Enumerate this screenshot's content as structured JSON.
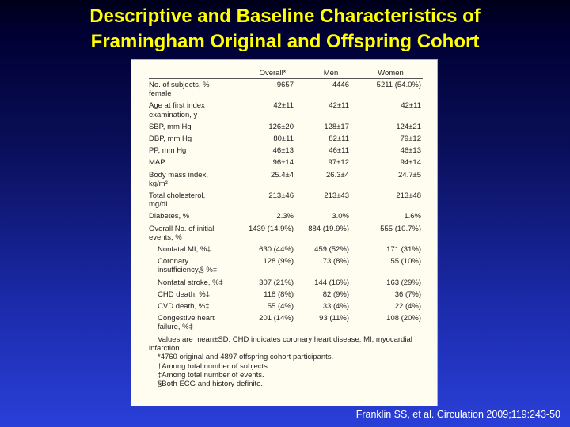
{
  "slide": {
    "title_line1": "Descriptive and Baseline Characteristics of",
    "title_line2": "Framingham Original and Offspring Cohort",
    "citation": "Franklin SS, et al. Circulation 2009;119:243-50"
  },
  "table": {
    "headers": [
      "",
      "Overall*",
      "Men",
      "Women"
    ],
    "rows": [
      {
        "label": [
          "No. of subjects, %",
          "female"
        ],
        "overall": "9657",
        "men": "4446",
        "women": "5211 (54.0%)",
        "sub": false
      },
      {
        "label": [
          "Age at first index",
          "examination, y"
        ],
        "overall": "42±11",
        "men": "42±11",
        "women": "42±11",
        "sub": false
      },
      {
        "label": [
          "SBP, mm Hg"
        ],
        "overall": "126±20",
        "men": "128±17",
        "women": "124±21",
        "sub": false
      },
      {
        "label": [
          "DBP, mm Hg"
        ],
        "overall": "80±11",
        "men": "82±11",
        "women": "79±12",
        "sub": false
      },
      {
        "label": [
          "PP, mm Hg"
        ],
        "overall": "46±13",
        "men": "46±11",
        "women": "46±13",
        "sub": false
      },
      {
        "label": [
          "MAP"
        ],
        "overall": "96±14",
        "men": "97±12",
        "women": "94±14",
        "sub": false
      },
      {
        "label": [
          "Body mass index,",
          "kg/m²"
        ],
        "overall": "25.4±4",
        "men": "26.3±4",
        "women": "24.7±5",
        "sub": false
      },
      {
        "label": [
          "Total cholesterol,",
          "mg/dL"
        ],
        "overall": "213±46",
        "men": "213±43",
        "women": "213±48",
        "sub": false
      },
      {
        "label": [
          "Diabetes, %"
        ],
        "overall": "2.3%",
        "men": "3.0%",
        "women": "1.6%",
        "sub": false
      },
      {
        "label": [
          "Overall No. of initial",
          "events, %†"
        ],
        "overall": "1439 (14.9%)",
        "men": "884 (19.9%)",
        "women": "555 (10.7%)",
        "sub": false
      },
      {
        "label": [
          "Nonfatal MI, %‡"
        ],
        "overall": "630 (44%)",
        "men": "459 (52%)",
        "women": "171 (31%)",
        "sub": true
      },
      {
        "label": [
          "Coronary",
          "insufficiency,§ %‡"
        ],
        "overall": "128 (9%)",
        "men": "73 (8%)",
        "women": "55 (10%)",
        "sub": true
      },
      {
        "label": [
          "Nonfatal stroke, %‡"
        ],
        "overall": "307 (21%)",
        "men": "144 (16%)",
        "women": "163 (29%)",
        "sub": true
      },
      {
        "label": [
          "CHD death, %‡"
        ],
        "overall": "118 (8%)",
        "men": "82 (9%)",
        "women": "36 (7%)",
        "sub": true
      },
      {
        "label": [
          "CVD death, %‡"
        ],
        "overall": "55 (4%)",
        "men": "33 (4%)",
        "women": "22 (4%)",
        "sub": true
      },
      {
        "label": [
          "Congestive heart",
          "failure, %‡"
        ],
        "overall": "201 (14%)",
        "men": "93 (11%)",
        "women": "108 (20%)",
        "sub": true
      }
    ],
    "notes": [
      {
        "text": "Values are mean±SD. CHD indicates coronary heart disease; MI, myocardial",
        "indent": true
      },
      {
        "text": "infarction.",
        "indent": false
      },
      {
        "text": "*4760 original and 4897 offspring cohort participants.",
        "indent": true
      },
      {
        "text": "†Among total number of subjects.",
        "indent": true
      },
      {
        "text": "‡Among total number of events.",
        "indent": true
      },
      {
        "text": "§Both ECG and history definite.",
        "indent": true
      }
    ]
  },
  "colors": {
    "title": "#ffff00",
    "panel_bg": "#fffdf0",
    "background_top": "#000033",
    "background_bottom": "#2a3fd8"
  }
}
